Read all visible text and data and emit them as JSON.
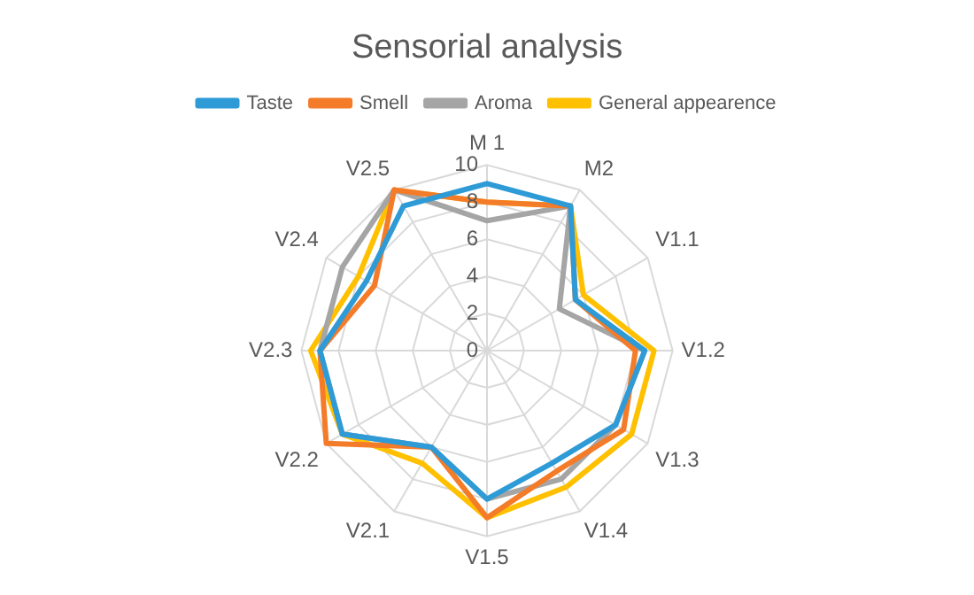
{
  "chart_data": {
    "type": "radar",
    "title": "Sensorial analysis",
    "categories": [
      "M 1",
      "M2",
      "V1.1",
      "V1.2",
      "V1.3",
      "V1.4",
      "V1.5",
      "V2.1",
      "V2.2",
      "V2.3",
      "V2.4",
      "V2.5"
    ],
    "ylim": [
      0,
      10
    ],
    "yticks": [
      0,
      2,
      4,
      6,
      8,
      10
    ],
    "grid": true,
    "legend": "top",
    "marker": "none",
    "series": [
      {
        "name": "Taste",
        "color": "#2e9bd6",
        "values": [
          9,
          9,
          5.5,
          8.5,
          8,
          7,
          8,
          6,
          9,
          9,
          7.5,
          9
        ]
      },
      {
        "name": "Smell",
        "color": "#f47b28",
        "values": [
          8,
          9,
          5.5,
          8,
          8.5,
          7.5,
          9,
          6,
          10,
          9,
          7,
          10
        ]
      },
      {
        "name": "Aroma",
        "color": "#a5a5a5",
        "values": [
          7,
          9,
          4.5,
          8.5,
          8,
          8,
          8,
          6,
          9,
          9,
          9,
          10
        ]
      },
      {
        "name": "General appearence",
        "color": "#ffc000",
        "values": [
          8,
          9,
          6,
          9,
          9,
          8.5,
          9,
          7,
          9,
          9.5,
          8,
          10
        ]
      }
    ]
  }
}
